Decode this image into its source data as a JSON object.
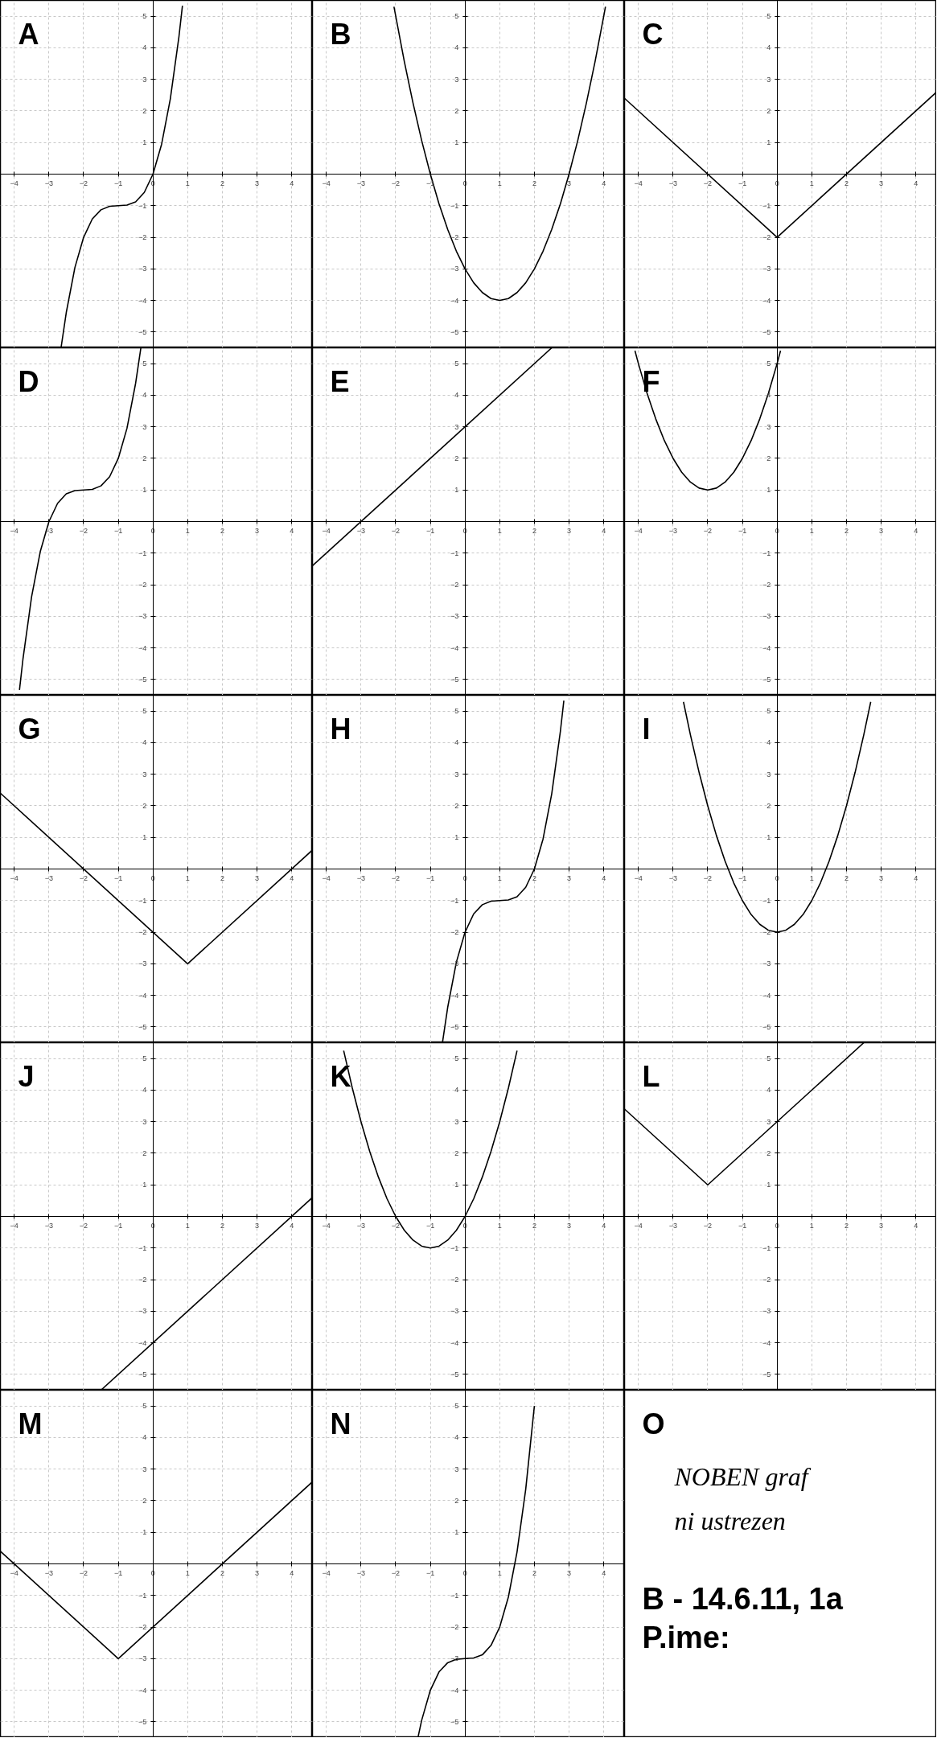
{
  "chart_data": [
    {
      "type": "line",
      "title": "A",
      "xlim": [
        -4.4,
        4.6
      ],
      "ylim": [
        -5.5,
        5.5
      ],
      "xticks": [
        -4,
        -3,
        -2,
        -1,
        0,
        1,
        2,
        3,
        4
      ],
      "yticks": [
        -5,
        -4,
        -3,
        -2,
        -1,
        1,
        2,
        3,
        4,
        5
      ],
      "grid": true,
      "series": [
        {
          "color": "#000000",
          "x": [
            -2.65,
            -2.5,
            -2.25,
            -2,
            -1.75,
            -1.5,
            -1.25,
            -1,
            -0.75,
            -0.5,
            -0.25,
            0,
            0.25,
            0.5,
            0.75,
            0.85
          ],
          "values": [
            -5.49,
            -4.38,
            -2.95,
            -2,
            -1.42,
            -1.13,
            -1.02,
            -1,
            -0.98,
            -0.88,
            -0.58,
            0,
            0.95,
            2.38,
            4.36,
            5.33
          ]
        }
      ]
    },
    {
      "type": "line",
      "title": "B",
      "xlim": [
        -4.4,
        4.6
      ],
      "ylim": [
        -5.5,
        5.5
      ],
      "xticks": [
        -4,
        -3,
        -2,
        -1,
        0,
        1,
        2,
        3,
        4
      ],
      "yticks": [
        -5,
        -4,
        -3,
        -2,
        -1,
        1,
        2,
        3,
        4,
        5
      ],
      "grid": true,
      "series": [
        {
          "color": "#000000",
          "x": [
            -2.05,
            -1.75,
            -1.5,
            -1.25,
            -1,
            -0.75,
            -0.5,
            -0.25,
            0,
            0.25,
            0.5,
            0.75,
            1,
            1.25,
            1.5,
            1.75,
            2,
            2.25,
            2.5,
            2.75,
            3,
            3.25,
            3.5,
            3.75,
            4,
            4.05
          ],
          "values": [
            5.3,
            3.56,
            2.25,
            1.06,
            0,
            -0.94,
            -1.75,
            -2.44,
            -3,
            -3.44,
            -3.75,
            -3.94,
            -4,
            -3.94,
            -3.75,
            -3.44,
            -3,
            -2.44,
            -1.75,
            -0.94,
            0,
            1.06,
            2.25,
            3.56,
            5,
            5.3
          ]
        }
      ]
    },
    {
      "type": "line",
      "title": "C",
      "xlim": [
        -4.4,
        4.6
      ],
      "ylim": [
        -5.5,
        5.5
      ],
      "xticks": [
        -4,
        -3,
        -2,
        -1,
        0,
        1,
        2,
        3,
        4
      ],
      "yticks": [
        -5,
        -4,
        -3,
        -2,
        -1,
        1,
        2,
        3,
        4,
        5
      ],
      "grid": true,
      "series": [
        {
          "color": "#000000",
          "x": [
            -4.4,
            0,
            4.6
          ],
          "values": [
            2.4,
            -2,
            2.6
          ]
        }
      ]
    },
    {
      "type": "line",
      "title": "D",
      "xlim": [
        -4.4,
        4.6
      ],
      "ylim": [
        -5.5,
        5.5
      ],
      "xticks": [
        -4,
        -3,
        -2,
        -1,
        0,
        1,
        2,
        3,
        4
      ],
      "yticks": [
        -5,
        -4,
        -3,
        -2,
        -1,
        1,
        2,
        3,
        4,
        5
      ],
      "grid": true,
      "series": [
        {
          "color": "#000000",
          "x": [
            -3.85,
            -3.75,
            -3.5,
            -3.25,
            -3,
            -2.75,
            -2.5,
            -2.25,
            -2,
            -1.75,
            -1.5,
            -1.25,
            -1,
            -0.75,
            -0.5,
            -0.35
          ],
          "values": [
            -5.33,
            -4.36,
            -2.38,
            -0.95,
            0,
            0.58,
            0.88,
            0.98,
            1,
            1.02,
            1.13,
            1.42,
            2,
            2.95,
            4.38,
            5.49
          ]
        }
      ]
    },
    {
      "type": "line",
      "title": "E",
      "xlim": [
        -4.4,
        4.6
      ],
      "ylim": [
        -5.5,
        5.5
      ],
      "xticks": [
        -4,
        -3,
        -2,
        -1,
        0,
        1,
        2,
        3,
        4
      ],
      "yticks": [
        -5,
        -4,
        -3,
        -2,
        -1,
        1,
        2,
        3,
        4,
        5
      ],
      "grid": true,
      "series": [
        {
          "color": "#000000",
          "x": [
            -4.4,
            2.5
          ],
          "values": [
            -1.4,
            5.5
          ]
        }
      ]
    },
    {
      "type": "line",
      "title": "F",
      "xlim": [
        -4.4,
        4.6
      ],
      "ylim": [
        -5.5,
        5.5
      ],
      "xticks": [
        -4,
        -3,
        -2,
        -1,
        0,
        1,
        2,
        3,
        4
      ],
      "yticks": [
        -5,
        -4,
        -3,
        -2,
        -1,
        1,
        2,
        3,
        4,
        5
      ],
      "grid": true,
      "series": [
        {
          "color": "#000000",
          "x": [
            -4.1,
            -4,
            -3.75,
            -3.5,
            -3.25,
            -3,
            -2.75,
            -2.5,
            -2.25,
            -2,
            -1.75,
            -1.5,
            -1.25,
            -1,
            -0.75,
            -0.5,
            -0.25,
            0,
            0.1
          ],
          "values": [
            5.41,
            5,
            4.06,
            3.25,
            2.56,
            2,
            1.56,
            1.25,
            1.06,
            1,
            1.06,
            1.25,
            1.56,
            2,
            2.56,
            3.25,
            4.06,
            5,
            5.41
          ]
        }
      ]
    },
    {
      "type": "line",
      "title": "G",
      "xlim": [
        -4.4,
        4.6
      ],
      "ylim": [
        -5.5,
        5.5
      ],
      "xticks": [
        -4,
        -3,
        -2,
        -1,
        0,
        1,
        2,
        3,
        4
      ],
      "yticks": [
        -5,
        -4,
        -3,
        -2,
        -1,
        1,
        2,
        3,
        4,
        5
      ],
      "grid": true,
      "series": [
        {
          "color": "#000000",
          "x": [
            -4.4,
            1,
            4.6
          ],
          "values": [
            2.4,
            -3,
            0.6
          ]
        }
      ]
    },
    {
      "type": "line",
      "title": "H",
      "xlim": [
        -4.4,
        4.6
      ],
      "ylim": [
        -5.5,
        5.5
      ],
      "xticks": [
        -4,
        -3,
        -2,
        -1,
        0,
        1,
        2,
        3,
        4
      ],
      "yticks": [
        -5,
        -4,
        -3,
        -2,
        -1,
        1,
        2,
        3,
        4,
        5
      ],
      "grid": true,
      "series": [
        {
          "color": "#000000",
          "x": [
            -0.65,
            -0.5,
            -0.25,
            0,
            0.25,
            0.5,
            0.75,
            1,
            1.25,
            1.5,
            1.75,
            2,
            2.25,
            2.5,
            2.75,
            2.85
          ],
          "values": [
            -5.49,
            -4.38,
            -2.95,
            -2,
            -1.42,
            -1.13,
            -1.02,
            -1,
            -0.98,
            -0.88,
            -0.58,
            0,
            0.95,
            2.38,
            4.36,
            5.33
          ]
        }
      ]
    },
    {
      "type": "line",
      "title": "I",
      "xlim": [
        -4.4,
        4.6
      ],
      "ylim": [
        -5.5,
        5.5
      ],
      "xticks": [
        -4,
        -3,
        -2,
        -1,
        0,
        1,
        2,
        3,
        4
      ],
      "yticks": [
        -5,
        -4,
        -3,
        -2,
        -1,
        1,
        2,
        3,
        4,
        5
      ],
      "grid": true,
      "series": [
        {
          "color": "#000000",
          "x": [
            -2.7,
            -2.5,
            -2.25,
            -2,
            -1.75,
            -1.5,
            -1.25,
            -1,
            -0.75,
            -0.5,
            -0.25,
            0,
            0.25,
            0.5,
            0.75,
            1,
            1.25,
            1.5,
            1.75,
            2,
            2.25,
            2.5,
            2.7
          ],
          "values": [
            5.29,
            4.25,
            3.06,
            2,
            1.06,
            0.25,
            -0.44,
            -1,
            -1.44,
            -1.75,
            -1.94,
            -2,
            -1.94,
            -1.75,
            -1.44,
            -1,
            -0.44,
            0.25,
            1.06,
            2,
            3.06,
            4.25,
            5.29
          ]
        }
      ]
    },
    {
      "type": "line",
      "title": "J",
      "xlim": [
        -4.4,
        4.6
      ],
      "ylim": [
        -5.5,
        5.5
      ],
      "xticks": [
        -4,
        -3,
        -2,
        -1,
        0,
        1,
        2,
        3,
        4
      ],
      "yticks": [
        -5,
        -4,
        -3,
        -2,
        -1,
        1,
        2,
        3,
        4,
        5
      ],
      "grid": true,
      "series": [
        {
          "color": "#000000",
          "x": [
            -1.5,
            4.6
          ],
          "values": [
            -5.5,
            0.6
          ]
        }
      ]
    },
    {
      "type": "line",
      "title": "K",
      "xlim": [
        -4.4,
        4.6
      ],
      "ylim": [
        -5.5,
        5.5
      ],
      "xticks": [
        -4,
        -3,
        -2,
        -1,
        0,
        1,
        2,
        3,
        4
      ],
      "yticks": [
        -5,
        -4,
        -3,
        -2,
        -1,
        1,
        2,
        3,
        4,
        5
      ],
      "grid": true,
      "series": [
        {
          "color": "#000000",
          "x": [
            -3.5,
            -3.25,
            -3,
            -2.75,
            -2.5,
            -2.25,
            -2,
            -1.75,
            -1.5,
            -1.25,
            -1,
            -0.75,
            -0.5,
            -0.25,
            0,
            0.25,
            0.5,
            0.75,
            1,
            1.25,
            1.5
          ],
          "values": [
            5.25,
            4.06,
            3,
            2.06,
            1.25,
            0.56,
            0,
            -0.44,
            -0.75,
            -0.94,
            -1,
            -0.94,
            -0.75,
            -0.44,
            0,
            0.56,
            1.25,
            2.06,
            3,
            4.06,
            5.25
          ]
        }
      ]
    },
    {
      "type": "line",
      "title": "L",
      "xlim": [
        -4.4,
        4.6
      ],
      "ylim": [
        -5.5,
        5.5
      ],
      "xticks": [
        -4,
        -3,
        -2,
        -1,
        0,
        1,
        2,
        3,
        4
      ],
      "yticks": [
        -5,
        -4,
        -3,
        -2,
        -1,
        1,
        2,
        3,
        4,
        5
      ],
      "grid": true,
      "series": [
        {
          "color": "#000000",
          "x": [
            -4.4,
            -2,
            2.5
          ],
          "values": [
            3.4,
            1,
            5.5
          ]
        }
      ]
    },
    {
      "type": "line",
      "title": "M",
      "xlim": [
        -4.4,
        4.6
      ],
      "ylim": [
        -5.5,
        5.5
      ],
      "xticks": [
        -4,
        -3,
        -2,
        -1,
        0,
        1,
        2,
        3,
        4
      ],
      "yticks": [
        -5,
        -4,
        -3,
        -2,
        -1,
        1,
        2,
        3,
        4,
        5
      ],
      "grid": true,
      "series": [
        {
          "color": "#000000",
          "x": [
            -4.4,
            -1,
            4.6
          ],
          "values": [
            0.4,
            -3,
            2.6
          ]
        }
      ]
    },
    {
      "type": "line",
      "title": "N",
      "xlim": [
        -4.4,
        4.6
      ],
      "ylim": [
        -5.5,
        5.5
      ],
      "xticks": [
        -4,
        -3,
        -2,
        -1,
        0,
        1,
        2,
        3,
        4
      ],
      "yticks": [
        -5,
        -4,
        -3,
        -2,
        -1,
        1,
        2,
        3,
        4,
        5
      ],
      "grid": true,
      "series": [
        {
          "color": "#000000",
          "x": [
            -1.35,
            -1.25,
            -1,
            -0.75,
            -0.5,
            -0.25,
            0,
            0.25,
            0.5,
            0.75,
            1,
            1.25,
            1.5,
            1.75,
            2
          ],
          "values": [
            -5.46,
            -4.95,
            -4,
            -3.42,
            -3.13,
            -3.02,
            -3,
            -2.98,
            -2.88,
            -2.58,
            -2,
            -1.05,
            0.38,
            2.36,
            5
          ]
        }
      ]
    },
    {
      "type": "other",
      "title": "O",
      "annotations": [
        "NOBEN  graf",
        "ni ustrezen",
        "B - 14.6.11, 1a",
        "P.ime:"
      ]
    }
  ]
}
